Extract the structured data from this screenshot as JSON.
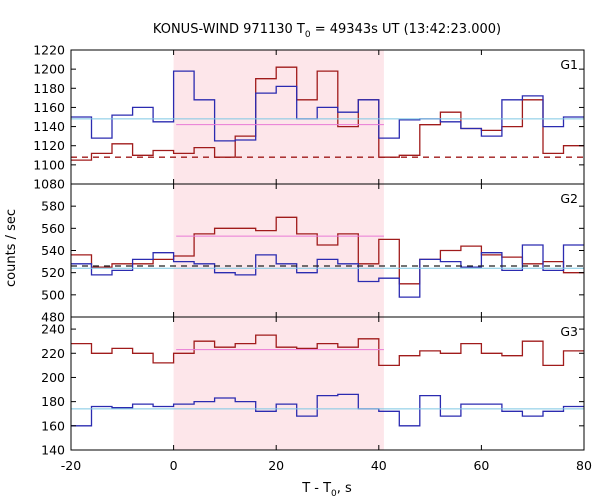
{
  "chart_data": {
    "type": "line",
    "title": "KONUS-WIND 971130 T",
    "title_sub": "0",
    "title_rest": " = 49343s UT (13:42:23.000)",
    "xlabel_main": "T - T",
    "xlabel_sub": "0",
    "xlabel_rest": ", s",
    "ylabel": "counts / sec",
    "xlim": [
      -20,
      80
    ],
    "xticks": [
      "-20",
      "0",
      "20",
      "40",
      "60",
      "80"
    ],
    "shaded_interval": [
      0,
      41
    ],
    "grid": false,
    "colors": {
      "red": "#a01b1b",
      "blue": "#2b2bb0",
      "pink": "#e87ad6",
      "cyan": "#7ec8e3",
      "shade": "#fde6ea"
    },
    "panels": [
      {
        "label": "G1",
        "ylim": [
          1080,
          1220
        ],
        "yticks": [
          "1080",
          "1100",
          "1120",
          "1140",
          "1160",
          "1180",
          "1200",
          "1220"
        ],
        "x_edges": [
          -20,
          -16,
          -12,
          -8,
          -4,
          0,
          4,
          8,
          12,
          16,
          20,
          24,
          28,
          32,
          36,
          40,
          44,
          48,
          52,
          56,
          60,
          64,
          68,
          72,
          76,
          80
        ],
        "series": [
          {
            "name": "red",
            "values": [
              1105,
              1112,
              1122,
              1110,
              1115,
              1112,
              1118,
              1108,
              1130,
              1190,
              1202,
              1168,
              1198,
              1140,
              1168,
              1108,
              1110,
              1142,
              1155,
              1138,
              1136,
              1140,
              1168,
              1112,
              1120
            ]
          },
          {
            "name": "blue",
            "values": [
              1150,
              1128,
              1152,
              1160,
              1145,
              1198,
              1168,
              1125,
              1126,
              1175,
              1182,
              1148,
              1160,
              1155,
              1168,
              1128,
              1147,
              1148,
              1145,
              1138,
              1130,
              1168,
              1172,
              1140,
              1150
            ]
          }
        ],
        "red_dashed_level": 1108,
        "pink_level": 1142,
        "cyan_level": 1148
      },
      {
        "label": "G2",
        "ylim": [
          480,
          600
        ],
        "yticks": [
          "480",
          "500",
          "520",
          "540",
          "560",
          "580"
        ],
        "x_edges": [
          -20,
          -16,
          -12,
          -8,
          -4,
          0,
          4,
          8,
          12,
          16,
          20,
          24,
          28,
          32,
          36,
          40,
          44,
          48,
          52,
          56,
          60,
          64,
          68,
          72,
          76,
          80
        ],
        "series": [
          {
            "name": "red",
            "values": [
              536,
              525,
              528,
              528,
              532,
              535,
              555,
              560,
              560,
              558,
              570,
              555,
              545,
              555,
              528,
              550,
              510,
              532,
              540,
              544,
              536,
              534,
              528,
              530,
              520
            ]
          },
          {
            "name": "blue",
            "values": [
              528,
              518,
              522,
              532,
              538,
              530,
              528,
              520,
              518,
              536,
              528,
              520,
              532,
              528,
              512,
              515,
              498,
              532,
              530,
              525,
              538,
              522,
              545,
              522,
              545
            ]
          }
        ],
        "black_dashed_level": 526,
        "pink_level": 553,
        "cyan_level": 524
      },
      {
        "label": "G3",
        "ylim": [
          140,
          250
        ],
        "yticks": [
          "140",
          "160",
          "180",
          "200",
          "220",
          "240"
        ],
        "x_edges": [
          -20,
          -16,
          -12,
          -8,
          -4,
          0,
          4,
          8,
          12,
          16,
          20,
          24,
          28,
          32,
          36,
          40,
          44,
          48,
          52,
          56,
          60,
          64,
          68,
          72,
          76,
          80
        ],
        "series": [
          {
            "name": "red",
            "values": [
              228,
              220,
              224,
              220,
              212,
              220,
              230,
              225,
              228,
              235,
              225,
              224,
              228,
              225,
              232,
              210,
              218,
              222,
              220,
              228,
              220,
              218,
              230,
              210,
              222
            ]
          },
          {
            "name": "blue",
            "values": [
              160,
              176,
              175,
              178,
              176,
              178,
              180,
              183,
              180,
              172,
              178,
              168,
              185,
              186,
              174,
              172,
              160,
              185,
              168,
              178,
              178,
              172,
              168,
              172,
              176
            ]
          }
        ],
        "pink_level": 223,
        "cyan_level": 174
      }
    ]
  }
}
